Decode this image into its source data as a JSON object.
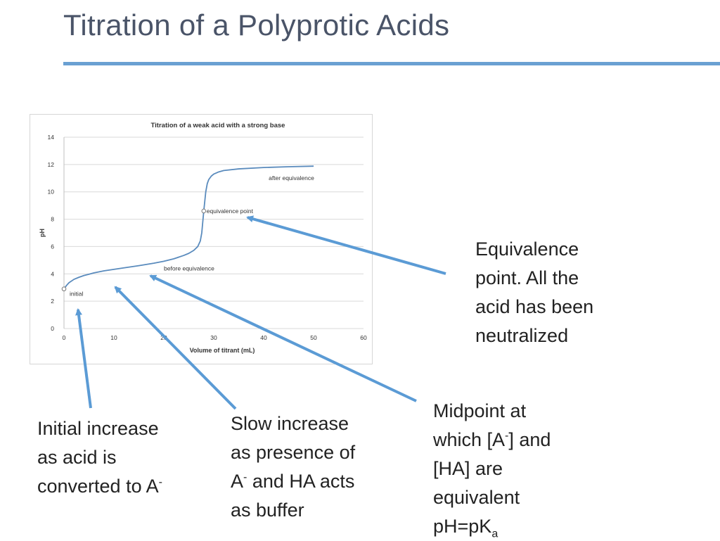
{
  "slide": {
    "title": "Titration of a Polyprotic Acids",
    "accent_color": "#6aa0d2"
  },
  "chart_data": {
    "type": "line",
    "title": "Titration of a weak acid with a strong base",
    "xlabel": "Volume of titrant (mL)",
    "ylabel": "pH",
    "xlim": [
      0,
      60
    ],
    "ylim": [
      0,
      14
    ],
    "x_ticks": [
      "0",
      "10",
      "20",
      "30",
      "40",
      "50",
      "60"
    ],
    "y_ticks": [
      "0",
      "2",
      "4",
      "6",
      "8",
      "10",
      "12",
      "14"
    ],
    "grid": "horizontal",
    "line_color": "#5a8bbd",
    "series": [
      {
        "x": [
          0,
          0.5,
          1,
          2,
          3,
          4,
          6,
          8,
          10,
          12,
          15,
          18,
          20,
          22,
          24,
          25,
          26,
          26.8,
          27.3,
          27.6,
          27.8,
          28,
          28.2,
          28.4,
          28.7,
          29,
          29.5,
          30,
          31,
          32,
          35,
          40,
          45,
          50
        ],
        "y": [
          2.9,
          3.15,
          3.35,
          3.6,
          3.75,
          3.88,
          4.07,
          4.22,
          4.33,
          4.44,
          4.6,
          4.78,
          4.92,
          5.1,
          5.35,
          5.5,
          5.72,
          6.0,
          6.4,
          7.0,
          7.8,
          8.6,
          9.3,
          10.0,
          10.6,
          10.9,
          11.15,
          11.3,
          11.46,
          11.56,
          11.68,
          11.78,
          11.84,
          11.88
        ]
      }
    ],
    "points": [
      {
        "x": 0,
        "y": 2.9,
        "label": "initial"
      },
      {
        "x": 28,
        "y": 8.6,
        "label": "equivalence point"
      }
    ],
    "annotations": [
      {
        "x": 20,
        "y": 4.25,
        "text": "before equivalence"
      },
      {
        "x": 41,
        "y": 10.85,
        "text": "after equivalence"
      }
    ]
  },
  "callouts": {
    "equivalence": [
      "Equivalence",
      "point. All the",
      "acid has been",
      "neutralized"
    ],
    "initial": {
      "line1": "Initial increase",
      "line2": "as acid is",
      "line3_text": "converted to A",
      "line3_sup": "-"
    },
    "slow": {
      "line1": "Slow increase",
      "line2": "as presence of",
      "line3_a": "A",
      "line3_sup": "-",
      "line3_b": " and HA acts",
      "line4": "as buffer"
    },
    "midpoint": {
      "line1": "Midpoint at",
      "line2_a": "which [A",
      "line2_sup": "-",
      "line2_b": "] and",
      "line3": "[HA] are",
      "line4": "equivalent",
      "line5_a": "pH=pK",
      "line5_sub": "a"
    }
  },
  "arrow_color": "#5b9bd5"
}
